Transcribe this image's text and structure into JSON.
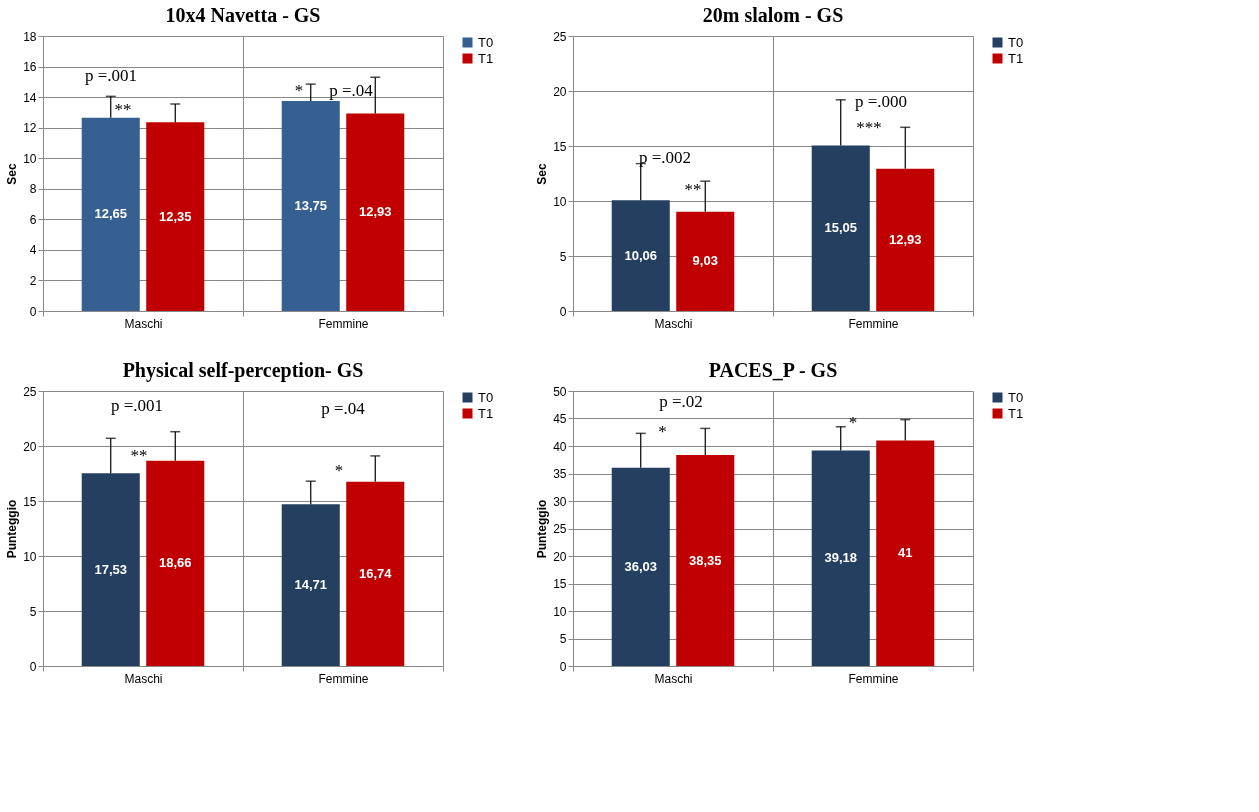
{
  "chart_data": [
    {
      "type": "bar",
      "title": "10x4 Navetta - GS",
      "ylabel": "Sec",
      "categories": [
        "Maschi",
        "Femmine"
      ],
      "ylim": [
        0,
        18
      ],
      "yticks": [
        0,
        2,
        4,
        6,
        8,
        10,
        12,
        14,
        16,
        18
      ],
      "grid": true,
      "legend": "right",
      "series": [
        {
          "name": "T0",
          "color": "#376092",
          "values": [
            12.65,
            13.75
          ],
          "value_labels": [
            "12,65",
            "13,75"
          ],
          "errors": [
            [
              12.65,
              14.05
            ],
            [
              13.75,
              14.85
            ]
          ]
        },
        {
          "name": "T1",
          "color": "#c00000",
          "values": [
            12.35,
            12.93
          ],
          "value_labels": [
            "12,35",
            "12,93"
          ],
          "errors": [
            [
              12.35,
              13.55
            ],
            [
              12.93,
              15.3
            ]
          ]
        }
      ],
      "annotations": [
        "p =.001",
        "**",
        "*",
        "p =.04"
      ]
    },
    {
      "type": "bar",
      "title": "20m slalom - GS",
      "ylabel": "Sec",
      "categories": [
        "Maschi",
        "Femmine"
      ],
      "ylim": [
        0,
        25
      ],
      "yticks": [
        0,
        5,
        10,
        15,
        20,
        25
      ],
      "grid": true,
      "legend": "right",
      "series": [
        {
          "name": "T0",
          "color": "#243f60",
          "values": [
            10.06,
            15.05
          ],
          "value_labels": [
            "10,06",
            "15,05"
          ],
          "errors": [
            [
              10.06,
              13.4
            ],
            [
              15.05,
              19.2
            ]
          ]
        },
        {
          "name": "T1",
          "color": "#c00000",
          "values": [
            9.03,
            12.93
          ],
          "value_labels": [
            "9,03",
            "12,93"
          ],
          "errors": [
            [
              9.03,
              11.8
            ],
            [
              12.93,
              16.7
            ]
          ]
        }
      ],
      "annotations": [
        "p =.002",
        "**",
        "p =.000",
        "***"
      ]
    },
    {
      "type": "bar",
      "title": "Physical self-perception- GS",
      "ylabel": "Punteggio",
      "categories": [
        "Maschi",
        "Femmine"
      ],
      "ylim": [
        0,
        25
      ],
      "yticks": [
        0,
        5,
        10,
        15,
        20,
        25
      ],
      "grid": true,
      "legend": "right",
      "series": [
        {
          "name": "T0",
          "color": "#243f60",
          "values": [
            17.53,
            14.71
          ],
          "value_labels": [
            "17,53",
            "14,71"
          ],
          "errors": [
            [
              17.53,
              20.7
            ],
            [
              14.71,
              16.8
            ]
          ]
        },
        {
          "name": "T1",
          "color": "#c00000",
          "values": [
            18.66,
            16.74
          ],
          "value_labels": [
            "18,66",
            "16,74"
          ],
          "errors": [
            [
              18.66,
              21.3
            ],
            [
              16.74,
              19.1
            ]
          ]
        }
      ],
      "annotations": [
        "p =.001",
        "**",
        "p =.04",
        "*"
      ]
    },
    {
      "type": "bar",
      "title": "PACES_P - GS",
      "ylabel": "Punteggio",
      "categories": [
        "Maschi",
        "Femmine"
      ],
      "ylim": [
        0,
        50
      ],
      "yticks": [
        0,
        5,
        10,
        15,
        20,
        25,
        30,
        35,
        40,
        45,
        50
      ],
      "grid": true,
      "legend": "right",
      "series": [
        {
          "name": "T0",
          "color": "#243f60",
          "values": [
            36.03,
            39.18
          ],
          "value_labels": [
            "36,03",
            "39,18"
          ],
          "errors": [
            [
              36.03,
              42.3
            ],
            [
              39.18,
              43.5
            ]
          ]
        },
        {
          "name": "T1",
          "color": "#c00000",
          "values": [
            38.35,
            41
          ],
          "value_labels": [
            "38,35",
            "41"
          ],
          "errors": [
            [
              38.35,
              43.2
            ],
            [
              41,
              44.8
            ]
          ]
        }
      ],
      "annotations": [
        "p =.02",
        "*",
        "*"
      ]
    }
  ]
}
